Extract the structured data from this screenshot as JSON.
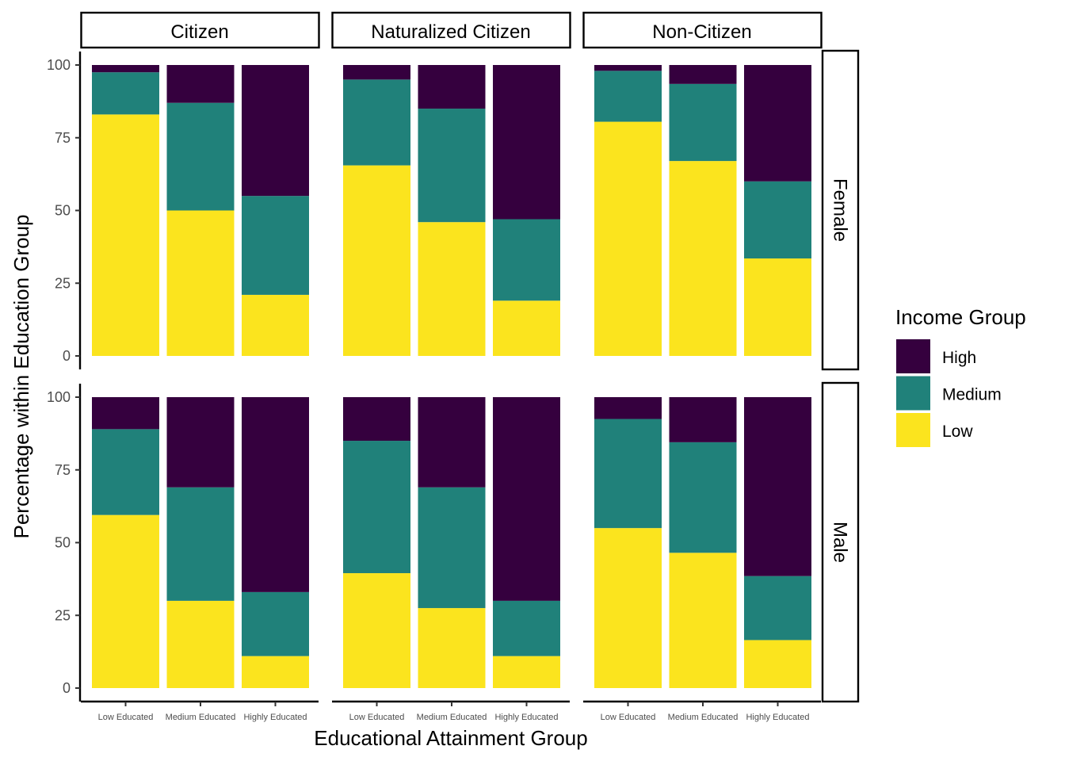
{
  "chart_data": {
    "type": "bar",
    "stacked": true,
    "xlabel": "Educational Attainment Group",
    "ylabel": "Percentage within Education Group",
    "ylim": [
      0,
      100
    ],
    "yticks": [
      0,
      25,
      50,
      75,
      100
    ],
    "categories": [
      "Low Educated",
      "Medium Educated",
      "Highly Educated"
    ],
    "facet_columns": [
      "Citizen",
      "Naturalized Citizen",
      "Non-Citizen"
    ],
    "facet_rows": [
      "Female",
      "Male"
    ],
    "legend": {
      "title": "Income Group",
      "position": "right",
      "entries": [
        {
          "name": "High",
          "color": "#35003e"
        },
        {
          "name": "Medium",
          "color": "#20817a"
        },
        {
          "name": "Low",
          "color": "#fbe41e"
        }
      ]
    },
    "series_order_bottom_to_top": [
      "Low",
      "Medium",
      "High"
    ],
    "panels": [
      {
        "row": "Female",
        "column": "Citizen",
        "values": {
          "Low": [
            83,
            50,
            21
          ],
          "Medium": [
            14.5,
            37,
            34
          ],
          "High": [
            2.5,
            13,
            45
          ]
        }
      },
      {
        "row": "Female",
        "column": "Naturalized Citizen",
        "values": {
          "Low": [
            65.5,
            46,
            19
          ],
          "Medium": [
            29.5,
            39,
            28
          ],
          "High": [
            5,
            15,
            53
          ]
        }
      },
      {
        "row": "Female",
        "column": "Non-Citizen",
        "values": {
          "Low": [
            80.5,
            67,
            33.5
          ],
          "Medium": [
            17.5,
            26.5,
            26.5
          ],
          "High": [
            2,
            6.5,
            40
          ]
        }
      },
      {
        "row": "Male",
        "column": "Citizen",
        "values": {
          "Low": [
            59.5,
            30,
            11
          ],
          "Medium": [
            29.5,
            39,
            22
          ],
          "High": [
            11,
            31,
            67
          ]
        }
      },
      {
        "row": "Male",
        "column": "Naturalized Citizen",
        "values": {
          "Low": [
            39.5,
            27.5,
            11
          ],
          "Medium": [
            45.5,
            41.5,
            19
          ],
          "High": [
            15,
            31,
            70
          ]
        }
      },
      {
        "row": "Male",
        "column": "Non-Citizen",
        "values": {
          "Low": [
            55,
            46.5,
            16.5
          ],
          "Medium": [
            37.5,
            38,
            22
          ],
          "High": [
            7.5,
            15.5,
            61.5
          ]
        }
      }
    ]
  }
}
